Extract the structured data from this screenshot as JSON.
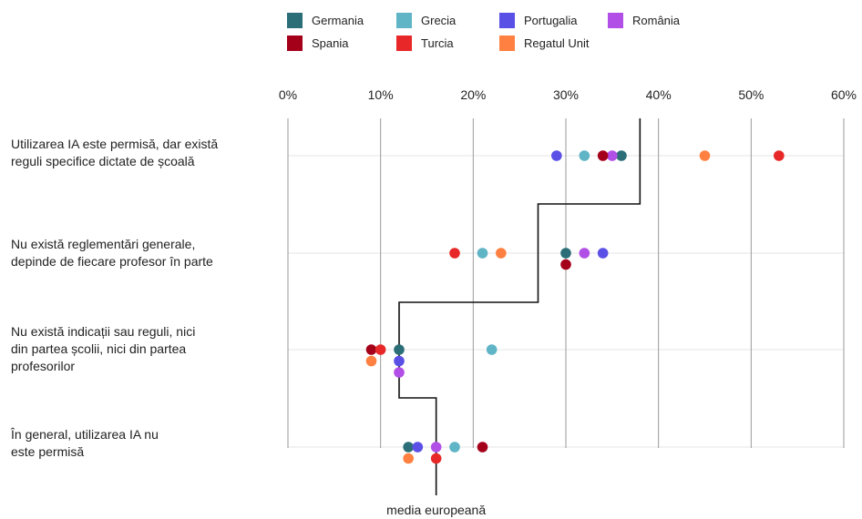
{
  "chart_data": {
    "type": "scatter",
    "xaxis": {
      "min": 0,
      "max": 60,
      "ticks": [
        0,
        10,
        20,
        30,
        40,
        50,
        60
      ],
      "tick_labels": [
        "0%",
        "10%",
        "20%",
        "30%",
        "40%",
        "50%",
        "60%"
      ],
      "grid": true,
      "position": "top"
    },
    "legend": {
      "placement": "top",
      "entries": [
        {
          "name": "Germania",
          "color": "#2b6e78"
        },
        {
          "name": "Grecia",
          "color": "#5fb4c6"
        },
        {
          "name": "Portugalia",
          "color": "#5a50e6"
        },
        {
          "name": "România",
          "color": "#b14fe6"
        },
        {
          "name": "Spania",
          "color": "#a5001a"
        },
        {
          "name": "Turcia",
          "color": "#e82828"
        },
        {
          "name": "Regatul Unit",
          "color": "#ff8040"
        }
      ]
    },
    "categories": [
      {
        "label": "Utilizarea IA este permisă, dar există reguli specifice dictate de școală",
        "lines": [
          "Utilizarea IA este permisă, dar există",
          "reguli specifice dictate de școală"
        ]
      },
      {
        "label": "Nu există reglementări generale, depinde de fiecare profesor în parte",
        "lines": [
          "Nu există reglementări generale,",
          "depinde de fiecare profesor în parte"
        ]
      },
      {
        "label": "Nu există indicații sau reguli, nici din partea școlii, nici din partea profesorilor",
        "lines": [
          "Nu există indicații sau reguli, nici",
          "din partea școlii, nici din partea",
          "profesorilor"
        ]
      },
      {
        "label": "În general, utilizarea IA nu este permisă",
        "lines": [
          "În general, utilizarea IA nu",
          "este permisă"
        ]
      }
    ],
    "series": [
      {
        "name": "Germania",
        "values": [
          36,
          30,
          12,
          13
        ]
      },
      {
        "name": "Grecia",
        "values": [
          32,
          21,
          22,
          18
        ]
      },
      {
        "name": "Portugalia",
        "values": [
          29,
          34,
          12,
          14
        ]
      },
      {
        "name": "România",
        "values": [
          35,
          32,
          12,
          16
        ]
      },
      {
        "name": "Spania",
        "values": [
          34,
          30,
          9,
          21
        ]
      },
      {
        "name": "Turcia",
        "values": [
          53,
          18,
          10,
          16
        ]
      },
      {
        "name": "Regatul Unit",
        "values": [
          45,
          23,
          9,
          13
        ]
      }
    ],
    "european_average": {
      "label": "media europeană",
      "values": [
        38,
        27,
        12,
        16
      ]
    }
  }
}
